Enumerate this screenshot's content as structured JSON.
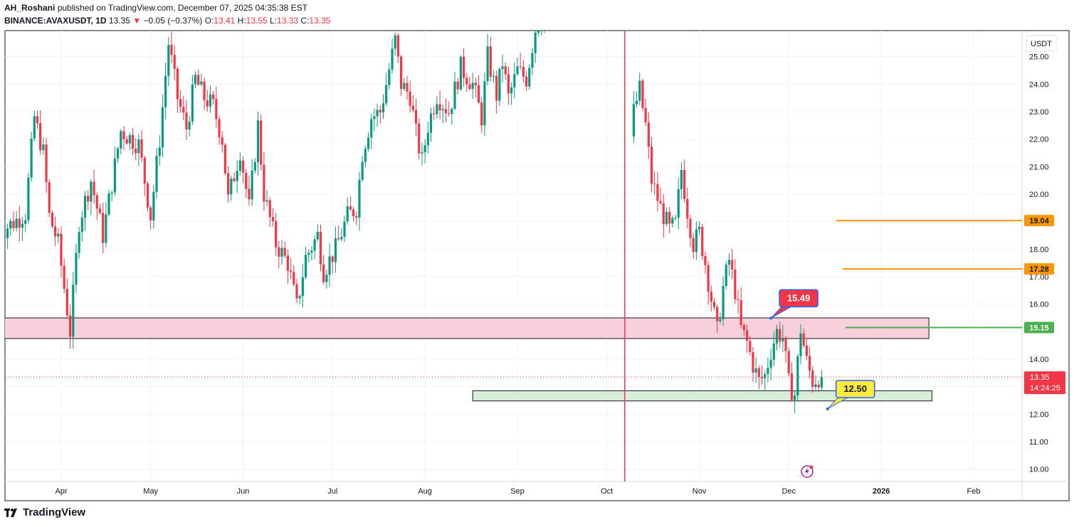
{
  "header": {
    "publisher": "AH_Roshani",
    "published_text": "published on TradingView.com, December 07, 2025 04:35:38 EST",
    "symbol": "BINANCE:AVAXUSDT, 1D",
    "last": "13.35",
    "change_arrow": "▼",
    "change": "−0.05 (−0.37%)",
    "o_label": "O:",
    "o": "13.41",
    "h_label": "H:",
    "h": "13.55",
    "l_label": "L:",
    "l": "13.33",
    "c_label": "C:",
    "c": "13.35"
  },
  "brand": {
    "logo_text": "17",
    "name": "TradingView"
  },
  "chart_data": {
    "type": "candlestick",
    "currency": "USDT",
    "ylim": [
      9.55,
      25.95
    ],
    "y_ticks": [
      {
        "value": 25,
        "label": "25.00"
      },
      {
        "value": 24,
        "label": "24.00"
      },
      {
        "value": 23,
        "label": "23.00"
      },
      {
        "value": 22,
        "label": "22.00"
      },
      {
        "value": 21,
        "label": "21.00"
      },
      {
        "value": 20,
        "label": "20.00"
      },
      {
        "value": 18,
        "label": "18.00"
      },
      {
        "value": 17,
        "label": "17.00"
      },
      {
        "value": 16,
        "label": "16.00"
      },
      {
        "value": 14,
        "label": "14.00"
      },
      {
        "value": 12,
        "label": "12.00"
      },
      {
        "value": 11,
        "label": "11.00"
      },
      {
        "value": 10,
        "label": "10.00"
      }
    ],
    "x_ticks": [
      "Apr",
      "May",
      "Jun",
      "Jul",
      "Aug",
      "Sep",
      "Oct",
      "Nov",
      "Dec",
      "2026",
      "Feb"
    ],
    "x_tick_days": [
      21,
      51,
      82,
      112,
      143,
      174,
      204,
      235,
      265,
      296,
      327
    ],
    "candle_window": {
      "first_day": 0,
      "last_day": 276,
      "gap_start_day": 188,
      "gap_end_day": 213
    },
    "path_segments": [
      [
        [
          0,
          18.5
        ],
        [
          10,
          19.3
        ],
        [
          13,
          22.8
        ],
        [
          16,
          21.5
        ],
        [
          18,
          19.2
        ],
        [
          21,
          18.2
        ],
        [
          25,
          15.0
        ],
        [
          28,
          19.0
        ],
        [
          32,
          20.5
        ],
        [
          36,
          18.5
        ],
        [
          42,
          22.3
        ],
        [
          48,
          21.8
        ],
        [
          52,
          19.2
        ],
        [
          55,
          22.0
        ],
        [
          58,
          25.5
        ],
        [
          61,
          23.5
        ],
        [
          64,
          22.4
        ],
        [
          67,
          24.2
        ],
        [
          70,
          23.5
        ],
        [
          73,
          23.2
        ],
        [
          76,
          22.0
        ],
        [
          78,
          19.8
        ],
        [
          82,
          21.6
        ],
        [
          85,
          19.5
        ],
        [
          88,
          22.5
        ],
        [
          90,
          20.0
        ],
        [
          94,
          18.2
        ],
        [
          98,
          17.5
        ],
        [
          101,
          15.9
        ],
        [
          104,
          17.7
        ],
        [
          108,
          18.5
        ],
        [
          110,
          17.2
        ],
        [
          114,
          18.0
        ],
        [
          118,
          19.2
        ],
        [
          121,
          19.5
        ],
        [
          123,
          21.5
        ],
        [
          126,
          22.8
        ],
        [
          129,
          23.0
        ],
        [
          131,
          24.0
        ],
        [
          134,
          25.6
        ],
        [
          136,
          24.0
        ],
        [
          139,
          23.6
        ],
        [
          141,
          22.2
        ],
        [
          143,
          21.2
        ],
        [
          145,
          22.5
        ],
        [
          148,
          23.6
        ],
        [
          152,
          23.0
        ],
        [
          156,
          24.6
        ],
        [
          160,
          24.0
        ],
        [
          163,
          22.8
        ],
        [
          165,
          25.0
        ],
        [
          168,
          23.6
        ],
        [
          170,
          24.8
        ],
        [
          172,
          23.5
        ],
        [
          175,
          24.5
        ],
        [
          178,
          24.2
        ],
        [
          181,
          26.0
        ],
        [
          183,
          26.5
        ]
      ],
      [
        [
          212,
          21.2
        ],
        [
          214,
          23.0
        ],
        [
          216,
          23.8
        ],
        [
          218,
          22.5
        ],
        [
          220,
          20.5
        ],
        [
          223,
          19.5
        ],
        [
          226,
          18.7
        ],
        [
          228,
          18.9
        ],
        [
          230,
          20.9
        ],
        [
          232,
          19.4
        ],
        [
          234,
          18.2
        ],
        [
          236,
          18.6
        ],
        [
          238,
          17.5
        ],
        [
          240,
          16.2
        ],
        [
          242,
          15.0
        ],
        [
          244,
          16.6
        ],
        [
          246,
          17.6
        ],
        [
          248,
          16.5
        ],
        [
          250,
          15.1
        ],
        [
          252,
          14.6
        ],
        [
          254,
          13.8
        ],
        [
          256,
          13.2
        ],
        [
          258,
          13.4
        ],
        [
          260,
          14.3
        ],
        [
          262,
          15.0
        ],
        [
          264,
          14.8
        ],
        [
          266,
          13.1
        ],
        [
          268,
          12.7
        ],
        [
          270,
          15.1
        ],
        [
          272,
          13.9
        ],
        [
          274,
          13.2
        ],
        [
          276,
          13.35
        ]
      ]
    ],
    "levels": [
      {
        "name": "resistance-19.04",
        "value": 19.04,
        "label": "19.04",
        "color": "#ff9800",
        "start_day": 281,
        "end_day": 348
      },
      {
        "name": "resistance-17.28",
        "value": 17.28,
        "label": "17.28",
        "color": "#ff9800",
        "start_day": 283,
        "end_day": 348
      },
      {
        "name": "level-15.15",
        "value": 15.15,
        "label": "15.15",
        "color": "#4caf50",
        "start_day": 284,
        "end_day": 348
      }
    ],
    "zones": [
      {
        "name": "resistance-zone",
        "from_day": 0,
        "to_day": 312,
        "low": 14.75,
        "high": 15.5,
        "fill": "#f8d0dc"
      },
      {
        "name": "support-zone",
        "from_day": 159,
        "to_day": 313,
        "low": 12.48,
        "high": 12.85,
        "fill": "#d9eed8"
      }
    ],
    "callouts": [
      {
        "name": "callout-15.49",
        "text": "15.49",
        "value": 15.49,
        "anchor_day": 259,
        "fill": "#f23645",
        "text_color": "#ffffff",
        "border": "#2962ff"
      },
      {
        "name": "callout-12.50",
        "text": "12.50",
        "value": 12.5,
        "anchor_day": 278,
        "fill": "#ffeb3b",
        "text_color": "#131722",
        "border": "#2962ff"
      }
    ],
    "vertical_marker": {
      "day": 210,
      "color": "#f23645"
    },
    "current_price": {
      "value": 13.35,
      "label": "13.35",
      "countdown": "14:24:25",
      "color": "#f23645"
    }
  }
}
